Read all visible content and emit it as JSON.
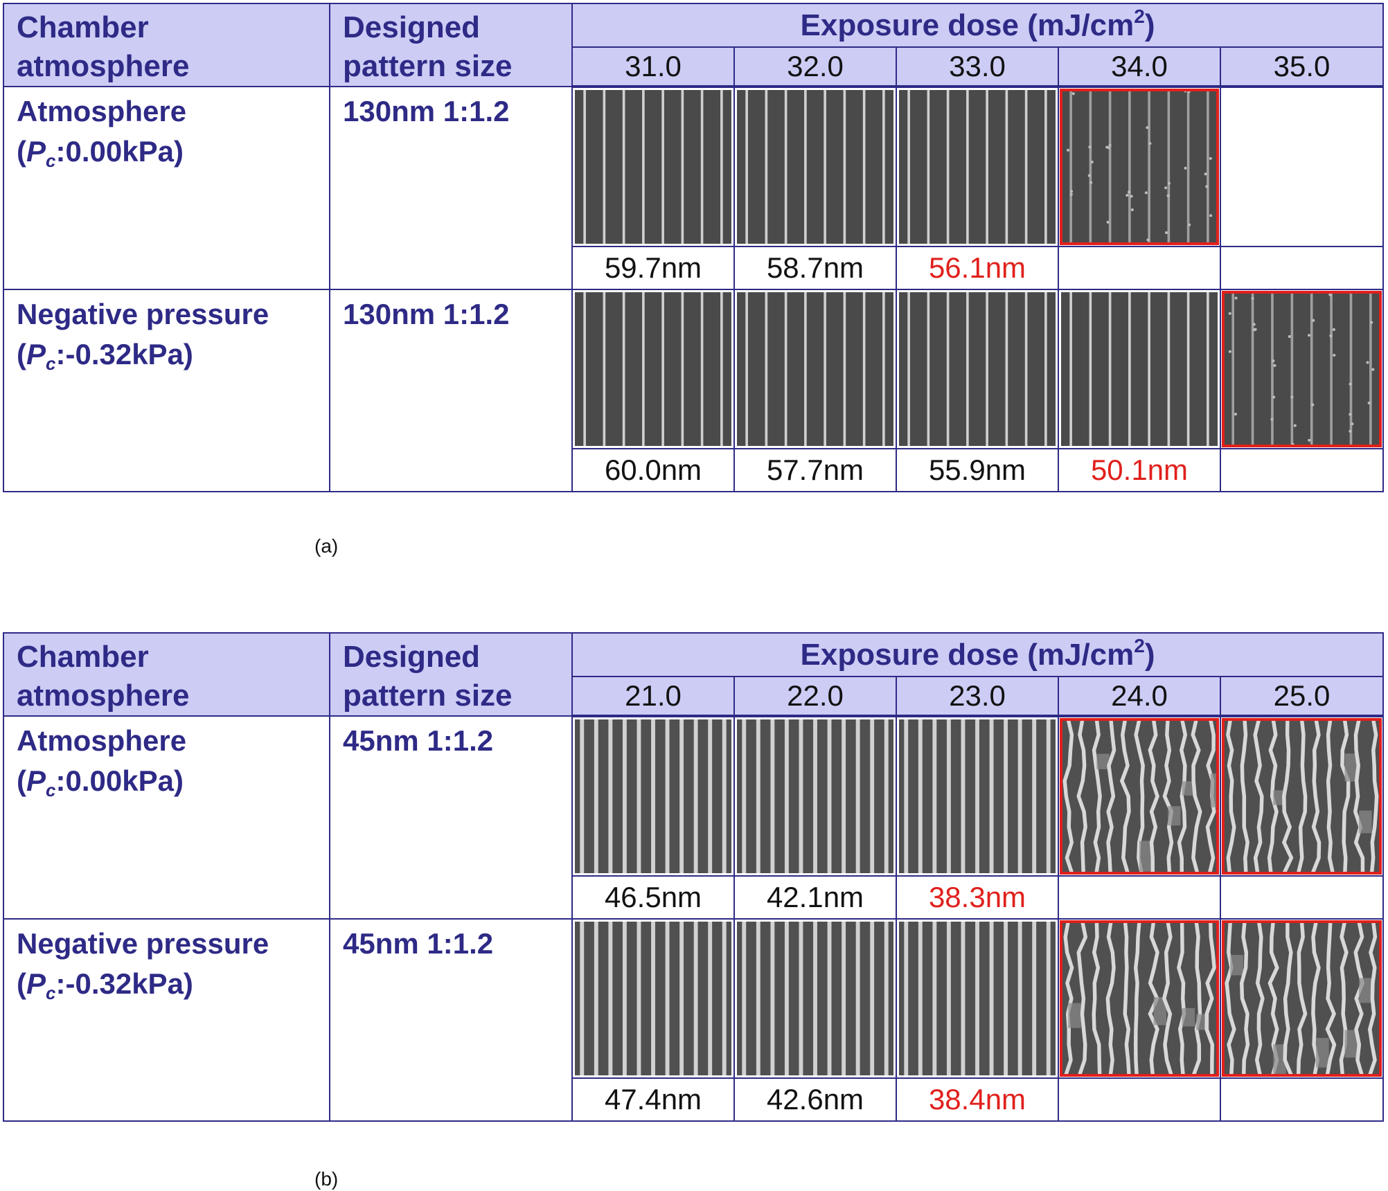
{
  "panels": [
    {
      "caption": "(a)",
      "headers": {
        "chamber_line1": "Chamber",
        "chamber_line2": "atmosphere",
        "pattern_line1": "Designed",
        "pattern_line2": "pattern size",
        "dose_title": "Exposure dose (mJ/cm",
        "dose_sup": "2",
        "dose_close": ")"
      },
      "doses": [
        "31.0",
        "32.0",
        "33.0",
        "34.0",
        "35.0"
      ],
      "rows": [
        {
          "label_line1": "Atmosphere",
          "p_symbol": "P",
          "p_sub": "c",
          "p_value": ":0.00kPa)",
          "pattern": "130nm 1:1.2",
          "images": [
            "sem",
            "sem",
            "sem",
            "sem-defect",
            "none"
          ],
          "flagged": [
            false,
            false,
            false,
            true,
            false
          ],
          "measurements": [
            "59.7nm",
            "58.7nm",
            "56.1nm",
            "",
            ""
          ],
          "meas_red": [
            false,
            false,
            true,
            false,
            false
          ]
        },
        {
          "label_line1": "Negative pressure",
          "p_symbol": "P",
          "p_sub": "c",
          "p_value": ":-0.32kPa)",
          "pattern": "130nm 1:1.2",
          "images": [
            "sem",
            "sem",
            "sem",
            "sem",
            "sem-defect"
          ],
          "flagged": [
            false,
            false,
            false,
            false,
            true
          ],
          "measurements": [
            "60.0nm",
            "57.7nm",
            "55.9nm",
            "50.1nm",
            ""
          ],
          "meas_red": [
            false,
            false,
            false,
            true,
            false
          ]
        }
      ]
    },
    {
      "caption": "(b)",
      "headers": {
        "chamber_line1": "Chamber",
        "chamber_line2": "atmosphere",
        "pattern_line1": "Designed",
        "pattern_line2": "pattern size",
        "dose_title": "Exposure dose (mJ/cm",
        "dose_sup": "2",
        "dose_close": ")"
      },
      "doses": [
        "21.0",
        "22.0",
        "23.0",
        "24.0",
        "25.0"
      ],
      "rows": [
        {
          "label_line1": "Atmosphere",
          "p_symbol": "P",
          "p_sub": "c",
          "p_value": ":0.00kPa)",
          "pattern": "45nm 1:1.2",
          "images": [
            "sem-fine",
            "sem-fine",
            "sem-fine",
            "sem-collapse",
            "sem-collapse"
          ],
          "flagged": [
            false,
            false,
            false,
            true,
            true
          ],
          "measurements": [
            "46.5nm",
            "42.1nm",
            "38.3nm",
            "",
            ""
          ],
          "meas_red": [
            false,
            false,
            true,
            false,
            false
          ]
        },
        {
          "label_line1": "Negative pressure",
          "p_symbol": "P",
          "p_sub": "c",
          "p_value": ":-0.32kPa)",
          "pattern": "45nm 1:1.2",
          "images": [
            "sem-fine",
            "sem-fine",
            "sem-fine",
            "sem-collapse",
            "sem-collapse"
          ],
          "flagged": [
            false,
            false,
            false,
            true,
            true
          ],
          "measurements": [
            "47.4nm",
            "42.6nm",
            "38.4nm",
            "",
            ""
          ],
          "meas_red": [
            false,
            false,
            true,
            false,
            false
          ]
        }
      ]
    }
  ],
  "colors": {
    "header_bg": "#ccccf5",
    "header_text": "#2e2a86",
    "border": "#2e2a86",
    "highlight_red": "#e0201c",
    "sem_background": "#4a4a4a",
    "sem_line": "#d8d8d8"
  }
}
